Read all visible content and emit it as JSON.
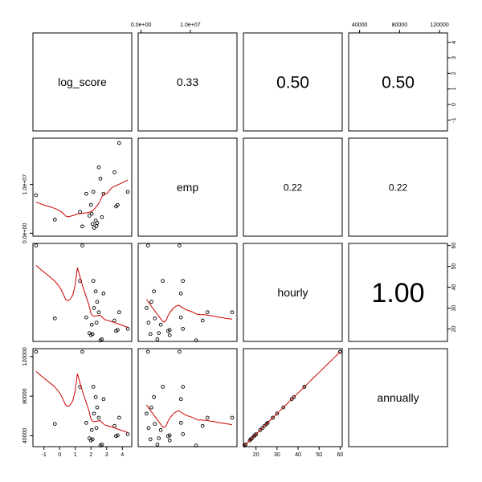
{
  "chart_data": {
    "type": "scatter",
    "title": "",
    "variables": [
      {
        "name": "log_score",
        "range": [
          -1.7,
          4.6
        ],
        "ticks": [
          -1,
          0,
          1,
          2,
          3,
          4
        ],
        "tick_labels": [
          "-1",
          "0",
          "1",
          "2",
          "3",
          "4"
        ]
      },
      {
        "name": "emp",
        "range": [
          -600000,
          19500000
        ],
        "ticks": [
          0,
          10000000
        ],
        "tick_labels": [
          "0.0e+00",
          "1.0e+07"
        ]
      },
      {
        "name": "hourly",
        "range": [
          14,
          61
        ],
        "ticks": [
          20,
          30,
          40,
          50,
          60
        ],
        "tick_labels": [
          "20",
          "30",
          "40",
          "50",
          "60"
        ]
      },
      {
        "name": "annually",
        "range": [
          29000,
          128000
        ],
        "ticks": [
          40000,
          80000,
          120000
        ],
        "tick_labels": [
          "40000",
          "80000",
          "120000"
        ]
      }
    ],
    "correlations": [
      {
        "row": 0,
        "col": 1,
        "value": "0.33",
        "size": 14
      },
      {
        "row": 0,
        "col": 2,
        "value": "0.50",
        "size": 21
      },
      {
        "row": 0,
        "col": 3,
        "value": "0.50",
        "size": 21
      },
      {
        "row": 1,
        "col": 2,
        "value": "0.22",
        "size": 12
      },
      {
        "row": 1,
        "col": 3,
        "value": "0.22",
        "size": 12
      },
      {
        "row": 2,
        "col": 3,
        "value": "1.00",
        "size": 34
      }
    ],
    "points": [
      {
        "log_score": -1.5,
        "emp": 7800000,
        "hourly": 60
      },
      {
        "log_score": -0.3,
        "emp": 2800000,
        "hourly": 25
      },
      {
        "log_score": 1.3,
        "emp": 4400000,
        "hourly": 43
      },
      {
        "log_score": 1.45,
        "emp": 1400000,
        "hourly": 60
      },
      {
        "log_score": 1.7,
        "emp": 8100000,
        "hourly": 25.5
      },
      {
        "log_score": 1.9,
        "emp": 3600000,
        "hourly": 18
      },
      {
        "log_score": 2.0,
        "emp": 5800000,
        "hourly": 17
      },
      {
        "log_score": 2.05,
        "emp": 4000000,
        "hourly": 22
      },
      {
        "log_score": 2.1,
        "emp": 1900000,
        "hourly": 17.5
      },
      {
        "log_score": 2.15,
        "emp": 8500000,
        "hourly": 43
      },
      {
        "log_score": 2.2,
        "emp": 1100000,
        "hourly": 30
      },
      {
        "log_score": 2.3,
        "emp": 2600000,
        "hourly": 38
      },
      {
        "log_score": 2.35,
        "emp": 1500000,
        "hourly": 23
      },
      {
        "log_score": 2.4,
        "emp": 2100000,
        "hourly": 33
      },
      {
        "log_score": 2.5,
        "emp": 13500000,
        "hourly": 28
      },
      {
        "log_score": 2.6,
        "emp": 11200000,
        "hourly": 14.5
      },
      {
        "log_score": 2.7,
        "emp": 3300000,
        "hourly": 15
      },
      {
        "log_score": 2.8,
        "emp": 8100000,
        "hourly": 37
      },
      {
        "log_score": 3.5,
        "emp": 12500000,
        "hourly": 24
      },
      {
        "log_score": 3.6,
        "emp": 5500000,
        "hourly": 19
      },
      {
        "log_score": 3.7,
        "emp": 5800000,
        "hourly": 19.5
      },
      {
        "log_score": 3.8,
        "emp": 18500000,
        "hourly": 28
      },
      {
        "log_score": 4.35,
        "emp": 8500000,
        "hourly": 20
      }
    ],
    "annually_from_hourly_factor": 2080,
    "smooth_color": "#cc0000",
    "point_color": "#000000"
  }
}
